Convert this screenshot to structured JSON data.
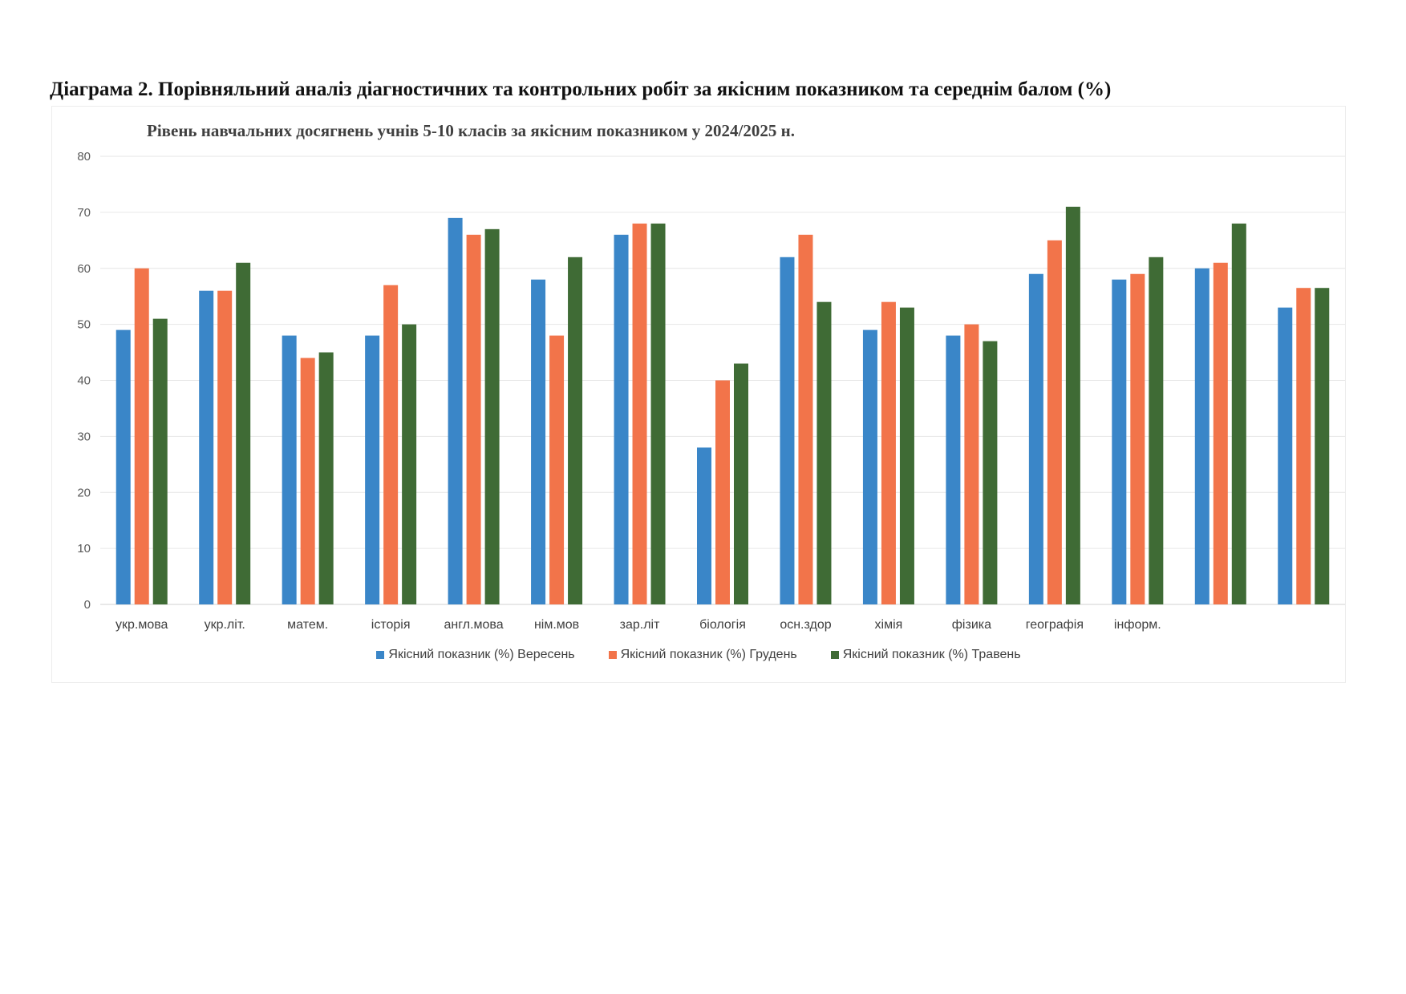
{
  "heading": "Діаграма 2. Порівняльний аналіз діагностичних та контрольних робіт за якісним показником та середнім балом (%)",
  "chart_data": {
    "type": "bar",
    "title": "Рівень навчальних досягнень учнів 5-10 класів за якісним показником  у 2024/2025 н.",
    "xlabel": "",
    "ylabel": "",
    "ylim": [
      0,
      80
    ],
    "yticks": [
      0,
      10,
      20,
      30,
      40,
      50,
      60,
      70,
      80
    ],
    "grid": true,
    "legend_position": "bottom",
    "categories": [
      "укр.мова",
      "укр.літ.",
      "матем.",
      "історія",
      "англ.мова",
      "нім.мов",
      "зар.літ",
      "біологія",
      "осн.здор",
      "хімія",
      "фізика",
      "географія",
      "інформ.",
      "",
      ""
    ],
    "series": [
      {
        "name": "Якісний показник (%)  Вересень",
        "color": "#3a86c8",
        "values": [
          49,
          56,
          48,
          48,
          69,
          58,
          66,
          28,
          62,
          49,
          48,
          59,
          58,
          60,
          53
        ]
      },
      {
        "name": "Якісний показник (%)  Грудень",
        "color": "#f2744a",
        "values": [
          60,
          56,
          44,
          57,
          66,
          48,
          68,
          40,
          66,
          54,
          50,
          65,
          59,
          61,
          56.5
        ]
      },
      {
        "name": "Якісний показник (%)  Травень",
        "color": "#3f6b35",
        "values": [
          51,
          61,
          45,
          50,
          67,
          62,
          68,
          43,
          54,
          53,
          47,
          71,
          62,
          68,
          56.5
        ]
      }
    ]
  }
}
